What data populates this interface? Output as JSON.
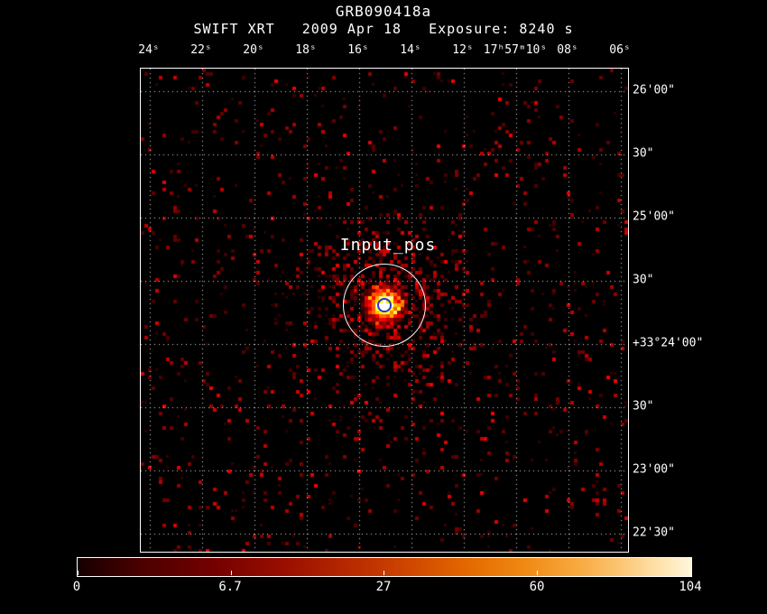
{
  "header": {
    "title": "GRB090418a",
    "instrument": "SWIFT XRT",
    "date": "2009 Apr 18",
    "exposure": "Exposure: 8240 s"
  },
  "annotation": {
    "source_label": "Input_pos"
  },
  "axes": {
    "x_ticks": [
      "24ˢ",
      "22ˢ",
      "20ˢ",
      "18ˢ",
      "16ˢ",
      "14ˢ",
      "12ˢ",
      "17ʰ57ᵐ10ˢ",
      "08ˢ",
      "06ˢ"
    ],
    "y_ticks": [
      "26'00\"",
      "30\"",
      "25'00\"",
      "30\"",
      "+33°24'00\"",
      "30\"",
      "23'00\"",
      "22'30\""
    ]
  },
  "colorbar": {
    "tick_labels": [
      "0",
      "6.7",
      "27",
      "60",
      "104"
    ]
  },
  "chart_data": {
    "type": "heatmap",
    "title": "GRB090418a",
    "instrument": "SWIFT XRT",
    "date": "2009 Apr 18",
    "exposure_seconds": 8240,
    "x_axis": {
      "tick_labels": [
        "24ˢ",
        "22ˢ",
        "20ˢ",
        "18ˢ",
        "16ˢ",
        "14ˢ",
        "12ˢ",
        "17ʰ57ᵐ10ˢ",
        "08ˢ",
        "06ˢ"
      ]
    },
    "y_axis": {
      "tick_labels": [
        "26'00\"",
        "30\"",
        "25'00\"",
        "30\"",
        "+33°24'00\"",
        "30\"",
        "23'00\"",
        "22'30\""
      ]
    },
    "grid": true,
    "colorbar": {
      "tick_values": [
        0,
        6.7,
        27,
        60,
        104
      ],
      "min": 0,
      "max": 104,
      "colormap": "heat",
      "scale": "sqrt"
    },
    "annotations": [
      {
        "type": "circle",
        "label": "Input_pos",
        "color": "#ffffff",
        "note": "source extraction region centered on bright source"
      },
      {
        "type": "circle",
        "color": "#2a36c8",
        "note": "input position marker at source peak"
      }
    ],
    "render": {
      "seed": 1337,
      "cell": 4,
      "source_fx": 0.5,
      "source_fy": 0.49,
      "source_sigma": 11,
      "halo_sigma": 52,
      "halo_amp": 0.5,
      "noise_base": 0.05
    }
  }
}
